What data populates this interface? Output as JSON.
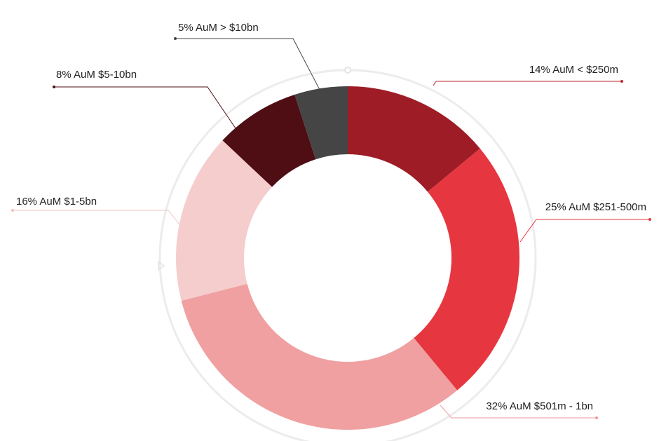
{
  "chart_data": {
    "type": "pie",
    "style": "donut",
    "slices": [
      {
        "label": "14% AuM < $250m",
        "value": 14,
        "color": "#9e1c26",
        "label_color": "#c0262f"
      },
      {
        "label": "25% AuM $251-500m",
        "value": 25,
        "color": "#e63640",
        "label_color": "#e63640"
      },
      {
        "label": "32% AuM $501m - 1bn",
        "value": 32,
        "color": "#f0a0a1",
        "label_color": "#ef9a9c"
      },
      {
        "label": "16% AuM $1-5bn",
        "value": 16,
        "color": "#f5cdcd",
        "label_color": "#f3c2c2"
      },
      {
        "label": "8% AuM $5-10bn",
        "value": 8,
        "color": "#4e0e14",
        "label_color": "#4e0e14"
      },
      {
        "label": "5% AuM  > $10bn",
        "value": 5,
        "color": "#454545",
        "label_color": "#454545"
      }
    ]
  }
}
